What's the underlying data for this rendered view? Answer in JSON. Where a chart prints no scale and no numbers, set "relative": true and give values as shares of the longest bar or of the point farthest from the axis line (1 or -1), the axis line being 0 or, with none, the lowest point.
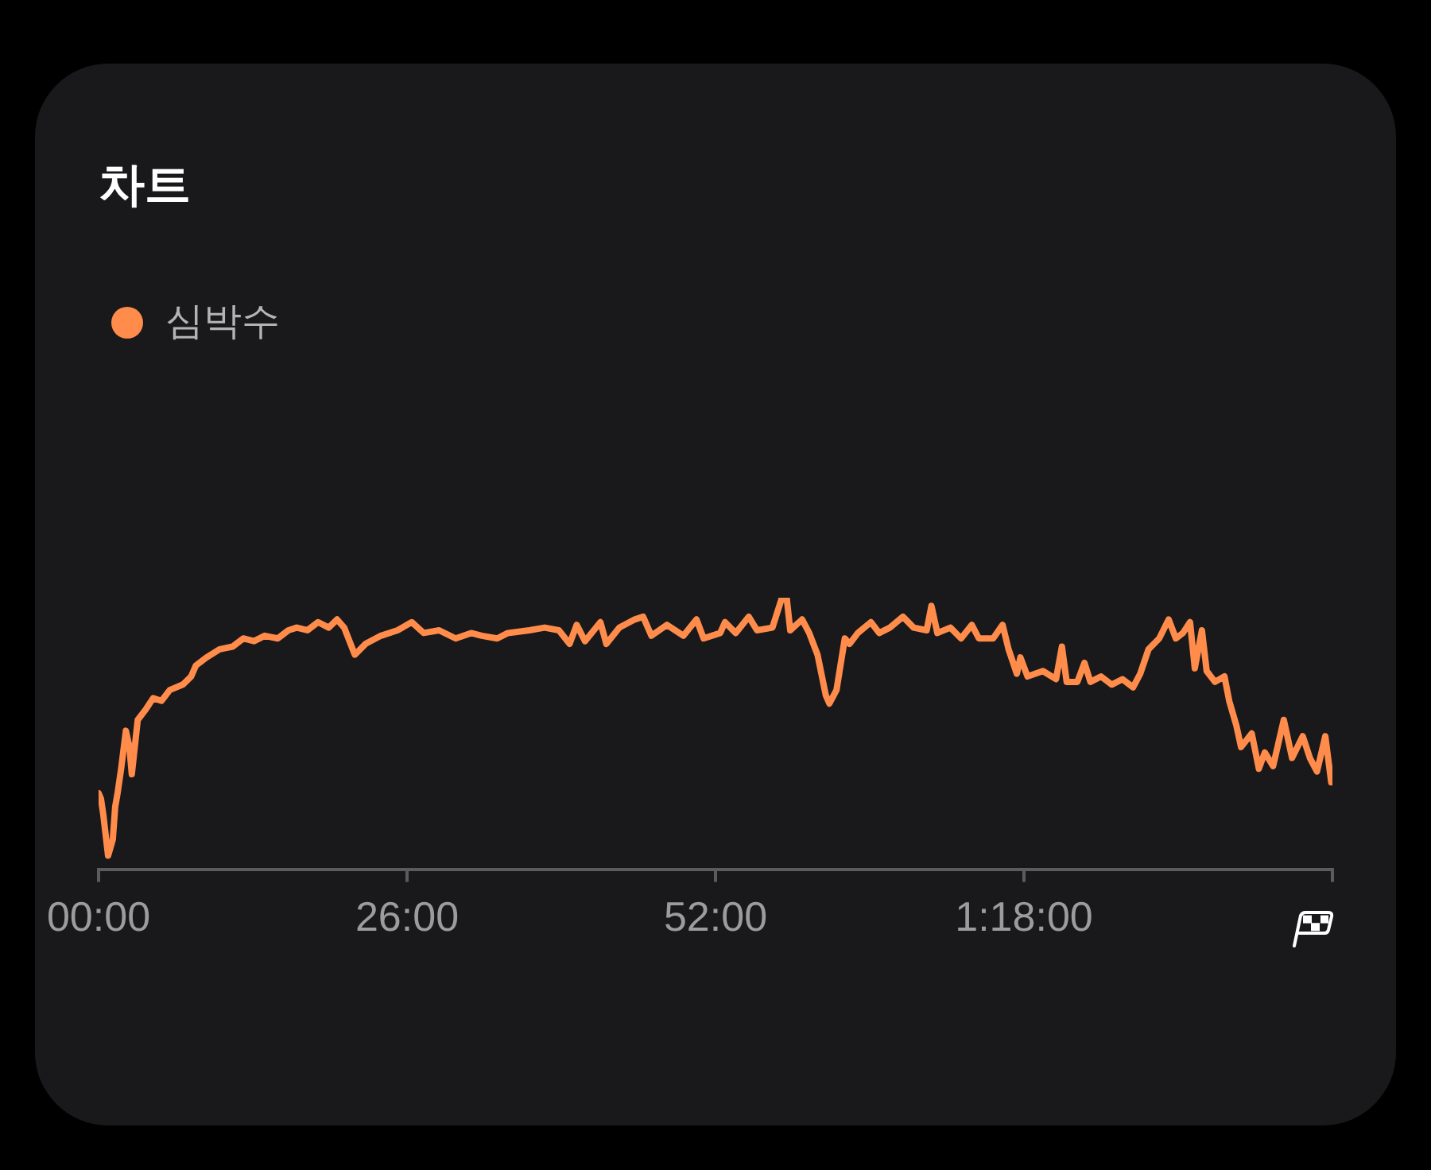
{
  "chart_data": {
    "type": "line",
    "title": "차트",
    "relative": true,
    "legend": "top left",
    "marker": "none",
    "grid": false,
    "tick_labels": "x",
    "xlim": [
      0,
      104
    ],
    "xticks": [
      {
        "value": 0,
        "label": "00:00"
      },
      {
        "value": 26,
        "label": "26:00"
      },
      {
        "value": 52,
        "label": "52:00"
      },
      {
        "value": 78,
        "label": "1:18:00"
      },
      {
        "value": 104,
        "label": null
      }
    ],
    "x": [
      0,
      0.2,
      0.4,
      0.8,
      1.2,
      1.4,
      1.6,
      1.9,
      2.3,
      2.6,
      2.8,
      3.1,
      3.3,
      4.0,
      4.6,
      5.3,
      6.0,
      7.1,
      7.8,
      8.2,
      9.1,
      10.2,
      11.3,
      12.2,
      13.1,
      14.0,
      15.1,
      16.0,
      16.7,
      17.6,
      18.5,
      19.4,
      20.1,
      20.7,
      21.6,
      22.5,
      23.8,
      25.2,
      26.4,
      27.4,
      28.7,
      30.1,
      31.4,
      32.3,
      33.6,
      34.5,
      36.3,
      37.6,
      38.8,
      39.7,
      40.3,
      41.0,
      42.3,
      42.8,
      43.9,
      45.2,
      45.9,
      46.6,
      47.9,
      49.3,
      50.4,
      51.0,
      52.4,
      52.8,
      53.7,
      54.8,
      55.5,
      56.8,
      57.6,
      58.0,
      58.3,
      59.3,
      59.9,
      60.6,
      61.3,
      61.6,
      62.2,
      62.9,
      63.3,
      64.0,
      65.1,
      65.8,
      66.7,
      67.8,
      68.7,
      69.8,
      70.2,
      70.7,
      71.8,
      72.7,
      73.6,
      74.2,
      75.4,
      76.2,
      76.7,
      77.4,
      77.7,
      78.3,
      79.6,
      80.7,
      81.2,
      81.6,
      82.5,
      83.1,
      83.6,
      84.5,
      85.4,
      86.3,
      87.2,
      87.8,
      88.5,
      89.4,
      90.2,
      90.8,
      91.4,
      92.0,
      92.4,
      93.0,
      93.4,
      94.1,
      94.9,
      95.3,
      95.9,
      96.3,
      97.2,
      97.8,
      98.3,
      99.0,
      99.9,
      100.6,
      101.5,
      102.1,
      102.7,
      103.4,
      103.9
    ],
    "series": [
      {
        "name": "심박수",
        "color": "#ff8c4a",
        "values": [
          0.28,
          0.26,
          0.2,
          0.05,
          0.11,
          0.23,
          0.28,
          0.37,
          0.51,
          0.45,
          0.35,
          0.47,
          0.55,
          0.59,
          0.63,
          0.62,
          0.66,
          0.68,
          0.71,
          0.75,
          0.78,
          0.81,
          0.82,
          0.85,
          0.84,
          0.86,
          0.85,
          0.88,
          0.89,
          0.88,
          0.91,
          0.89,
          0.92,
          0.89,
          0.79,
          0.83,
          0.86,
          0.88,
          0.91,
          0.87,
          0.88,
          0.85,
          0.87,
          0.86,
          0.85,
          0.87,
          0.88,
          0.89,
          0.88,
          0.83,
          0.9,
          0.84,
          0.91,
          0.83,
          0.89,
          0.92,
          0.93,
          0.86,
          0.9,
          0.86,
          0.92,
          0.85,
          0.87,
          0.91,
          0.87,
          0.93,
          0.88,
          0.89,
          1.0,
          1.0,
          0.88,
          0.92,
          0.87,
          0.79,
          0.64,
          0.61,
          0.66,
          0.85,
          0.83,
          0.87,
          0.91,
          0.87,
          0.89,
          0.93,
          0.89,
          0.88,
          0.97,
          0.87,
          0.89,
          0.85,
          0.9,
          0.85,
          0.85,
          0.9,
          0.81,
          0.72,
          0.78,
          0.71,
          0.73,
          0.7,
          0.82,
          0.69,
          0.69,
          0.76,
          0.69,
          0.71,
          0.68,
          0.7,
          0.67,
          0.72,
          0.81,
          0.85,
          0.92,
          0.85,
          0.87,
          0.91,
          0.74,
          0.88,
          0.73,
          0.69,
          0.71,
          0.62,
          0.53,
          0.45,
          0.5,
          0.37,
          0.43,
          0.38,
          0.55,
          0.41,
          0.49,
          0.41,
          0.36,
          0.49,
          0.32
        ]
      }
    ]
  }
}
